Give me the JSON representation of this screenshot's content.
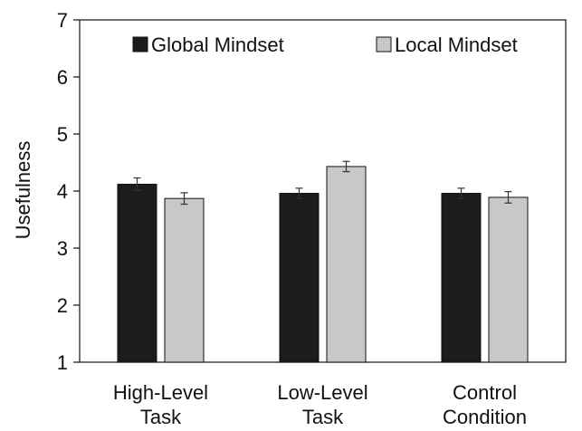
{
  "chart_data": {
    "type": "bar",
    "title": "",
    "xlabel": "",
    "ylabel": "Usefulness",
    "ylim": [
      1,
      7
    ],
    "yticks": [
      "1",
      "2",
      "3",
      "4",
      "5",
      "6",
      "7"
    ],
    "categories": [
      [
        "High-Level",
        "Task"
      ],
      [
        "Low-Level",
        "Task"
      ],
      [
        "Control",
        "Condition"
      ]
    ],
    "series": [
      {
        "name": "Global Mindset",
        "color": "#1c1c1c",
        "values": [
          4.12,
          3.96,
          3.96
        ],
        "errors": [
          0.11,
          0.09,
          0.09
        ]
      },
      {
        "name": "Local Mindset",
        "color": "#c8c8c8",
        "values": [
          3.87,
          4.43,
          3.89
        ],
        "errors": [
          0.1,
          0.09,
          0.1
        ]
      }
    ],
    "grid": false,
    "legend": "top"
  }
}
